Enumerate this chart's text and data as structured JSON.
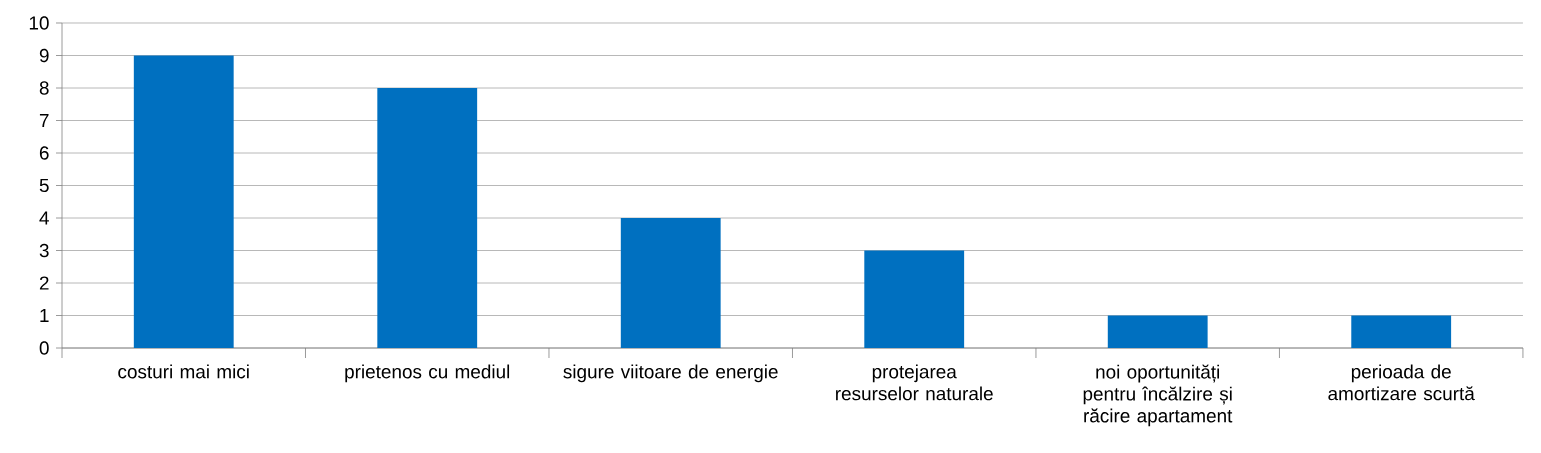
{
  "chart_data": {
    "type": "bar",
    "categories": [
      "costuri mai mici",
      "prietenos cu mediul",
      "sigure viitoare de energie",
      "protejarea resurselor naturale",
      "noi oportunități pentru încălzire și răcire apartament",
      "perioada de amortizare scurtă"
    ],
    "values": [
      9,
      8,
      4,
      3,
      1,
      1
    ],
    "color": "#0070c0",
    "ylim": [
      0,
      10
    ],
    "yticks": [
      0,
      1,
      2,
      3,
      4,
      5,
      6,
      7,
      8,
      9,
      10
    ],
    "grid": "y"
  }
}
